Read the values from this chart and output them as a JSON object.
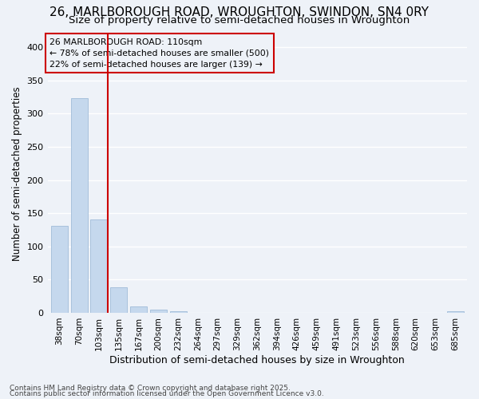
{
  "title1": "26, MARLBOROUGH ROAD, WROUGHTON, SWINDON, SN4 0RY",
  "title2": "Size of property relative to semi-detached houses in Wroughton",
  "xlabel": "Distribution of semi-detached houses by size in Wroughton",
  "ylabel": "Number of semi-detached properties",
  "categories": [
    "38sqm",
    "70sqm",
    "103sqm",
    "135sqm",
    "167sqm",
    "200sqm",
    "232sqm",
    "264sqm",
    "297sqm",
    "329sqm",
    "362sqm",
    "394sqm",
    "426sqm",
    "459sqm",
    "491sqm",
    "523sqm",
    "556sqm",
    "588sqm",
    "620sqm",
    "653sqm",
    "685sqm"
  ],
  "values": [
    131,
    323,
    140,
    38,
    10,
    5,
    2,
    0,
    0,
    0,
    0,
    0,
    0,
    0,
    0,
    0,
    0,
    0,
    0,
    0,
    2
  ],
  "bar_color": "#c5d8ed",
  "bar_edge_color": "#a0bcd8",
  "vline_x_idx": 2,
  "vline_color": "#cc0000",
  "annotation_title": "26 MARLBOROUGH ROAD: 110sqm",
  "annotation_line1": "← 78% of semi-detached houses are smaller (500)",
  "annotation_line2": "22% of semi-detached houses are larger (139) →",
  "annotation_box_color": "#cc0000",
  "ylim": [
    0,
    420
  ],
  "yticks": [
    0,
    50,
    100,
    150,
    200,
    250,
    300,
    350,
    400
  ],
  "footer1": "Contains HM Land Registry data © Crown copyright and database right 2025.",
  "footer2": "Contains public sector information licensed under the Open Government Licence v3.0.",
  "bg_color": "#eef2f8",
  "grid_color": "#ffffff"
}
